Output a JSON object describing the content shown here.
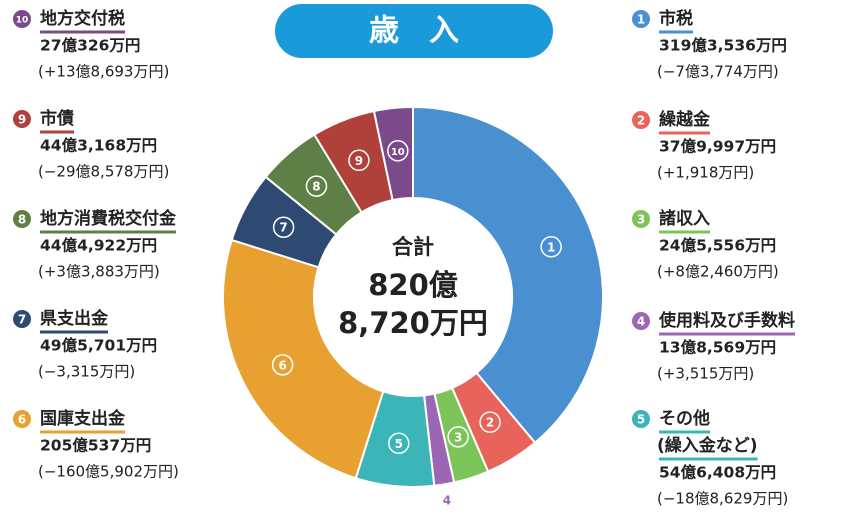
{
  "chart_data": {
    "type": "donut",
    "title": "歳　入",
    "total_title": "合計",
    "total_lines": [
      "820億",
      "8,720万円"
    ],
    "markers": [
      "1",
      "2",
      "3",
      "4",
      "5",
      "6",
      "7",
      "8",
      "9",
      "10"
    ],
    "categories": [
      "市税",
      "繰越金",
      "諸収入",
      "使用料及び手数料",
      "その他",
      "国庫支出金",
      "県支出金",
      "地方消費税交付金",
      "市債",
      "地方交付税"
    ],
    "notes": {
      "4": "(繰入金など)"
    },
    "values": [
      3193536,
      379997,
      245556,
      138569,
      546408,
      2050537,
      495701,
      444922,
      443168,
      270326
    ],
    "value_labels": [
      "319億3,536万円",
      "37億9,997万円",
      "24億5,556万円",
      "13億8,569万円",
      "54億6,408万円",
      "205億537万円",
      "49億5,701万円",
      "44億4,922万円",
      "44億3,168万円",
      "27億326万円"
    ],
    "change_labels": [
      "(−7億3,774万円)",
      "(+1,918万円)",
      "(+8億2,460万円)",
      "(+3,515万円)",
      "(−18億8,629万円)",
      "(−160億5,902万円)",
      "(−3,315万円)",
      "(+3億3,883万円)",
      "(−29億8,578万円)",
      "(+13億8,693万円)"
    ],
    "colors": [
      "#4a8fd0",
      "#e8635a",
      "#7cc45a",
      "#9b67b5",
      "#3bb5b8",
      "#e8a030",
      "#2e4a72",
      "#5e7f45",
      "#b0413a",
      "#7a4a8a"
    ]
  }
}
